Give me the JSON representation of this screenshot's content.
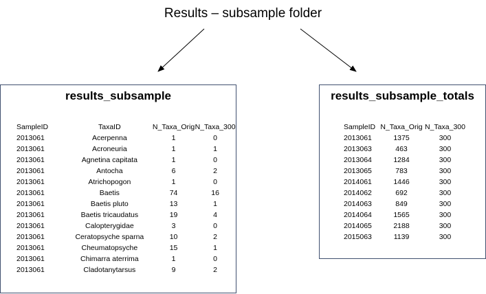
{
  "title": "Results – subsample folder",
  "left_table": {
    "title": "results_subsample",
    "headers": [
      "SampleID",
      "TaxaID",
      "N_Taxa_Orig",
      "N_Taxa_300"
    ],
    "rows": [
      [
        "2013061",
        "Acerpenna",
        "1",
        "0"
      ],
      [
        "2013061",
        "Acroneuria",
        "1",
        "1"
      ],
      [
        "2013061",
        "Agnetina capitata",
        "1",
        "0"
      ],
      [
        "2013061",
        "Antocha",
        "6",
        "2"
      ],
      [
        "2013061",
        "Atrichopogon",
        "1",
        "0"
      ],
      [
        "2013061",
        "Baetis",
        "74",
        "16"
      ],
      [
        "2013061",
        "Baetis pluto",
        "13",
        "1"
      ],
      [
        "2013061",
        "Baetis tricaudatus",
        "19",
        "4"
      ],
      [
        "2013061",
        "Calopterygidae",
        "3",
        "0"
      ],
      [
        "2013061",
        "Ceratopsyche sparna",
        "10",
        "2"
      ],
      [
        "2013061",
        "Cheumatopsyche",
        "15",
        "1"
      ],
      [
        "2013061",
        "Chimarra aterrima",
        "1",
        "0"
      ],
      [
        "2013061",
        "Cladotanytarsus",
        "9",
        "2"
      ]
    ]
  },
  "right_table": {
    "title": "results_subsample_totals",
    "headers": [
      "SampleID",
      "N_Taxa_Orig",
      "N_Taxa_300"
    ],
    "rows": [
      [
        "2013061",
        "1375",
        "300"
      ],
      [
        "2013063",
        "463",
        "300"
      ],
      [
        "2013064",
        "1284",
        "300"
      ],
      [
        "2013065",
        "783",
        "300"
      ],
      [
        "2014061",
        "1446",
        "300"
      ],
      [
        "2014062",
        "692",
        "300"
      ],
      [
        "2014063",
        "849",
        "300"
      ],
      [
        "2014064",
        "1565",
        "300"
      ],
      [
        "2014065",
        "2188",
        "300"
      ],
      [
        "2015063",
        "1139",
        "300"
      ]
    ]
  }
}
